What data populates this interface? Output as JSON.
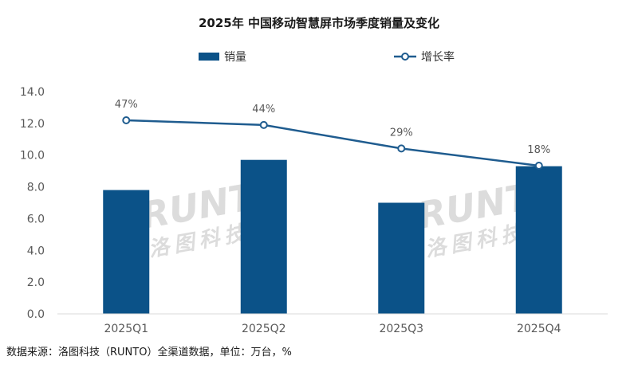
{
  "chart_data": {
    "type": "bar",
    "title": "2025年 中国移动智慧屏市场季度销量及变化",
    "categories": [
      "2025Q1",
      "2025Q2",
      "2025Q3",
      "2025Q4"
    ],
    "series": [
      {
        "name": "销量",
        "type": "bar",
        "values": [
          7.8,
          9.7,
          7.0,
          9.3
        ],
        "color": "#0b5288"
      },
      {
        "name": "增长率",
        "type": "line",
        "values": [
          47,
          44,
          29,
          18
        ],
        "labels": [
          "47%",
          "44%",
          "29%",
          "18%"
        ],
        "color": "#1f5c8f"
      }
    ],
    "yticks": [
      "0.0",
      "2.0",
      "4.0",
      "6.0",
      "8.0",
      "10.0",
      "12.0",
      "14.0"
    ],
    "ylim": [
      0,
      14
    ],
    "legend_position": "top-center",
    "grid": false,
    "source": "数据来源：洛图科技（RUNTO）全渠道数据，单位：万台，%"
  },
  "watermark": {
    "latin": "RUNTO",
    "cjk": "洛图科技",
    "color": "#dcdcdc"
  }
}
